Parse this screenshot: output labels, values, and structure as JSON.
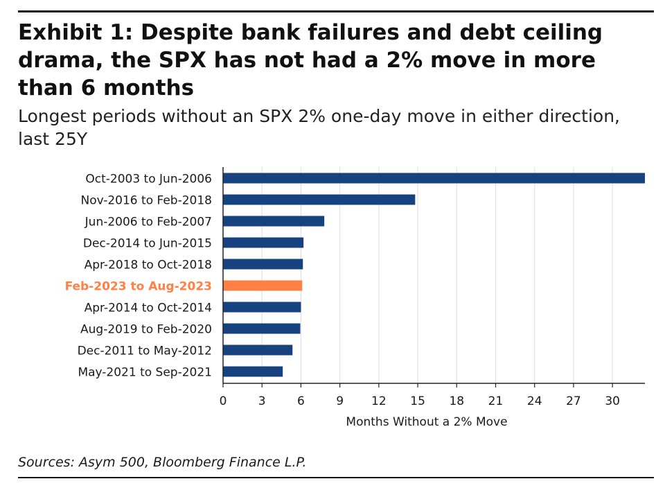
{
  "exhibit": {
    "title": "Exhibit 1: Despite bank failures and debt ceiling drama, the SPX has not had a 2% move in more than 6 months",
    "subtitle": "Longest periods without an SPX 2% one-day move in either direction, last 25Y",
    "source": "Sources: Asym 500, Bloomberg Finance L.P."
  },
  "colors": {
    "bar": "#16427f",
    "highlight": "#ff8045",
    "grid": "#e2e2e2",
    "axis": "#222222",
    "text": "#1a1a1a"
  },
  "chart_data": {
    "type": "bar",
    "orientation": "horizontal",
    "title": "Longest periods without an SPX 2% one-day move in either direction, last 25Y",
    "xlabel": "Months Without a 2% Move",
    "ylabel": "",
    "xlim": [
      0,
      32.5
    ],
    "xticks": [
      0,
      3,
      6,
      9,
      12,
      15,
      18,
      21,
      24,
      27,
      30
    ],
    "grid": true,
    "categories": [
      "Oct-2003 to Jun-2006",
      "Nov-2016 to Feb-2018",
      "Jun-2006 to Feb-2007",
      "Dec-2014 to Jun-2015",
      "Apr-2018 to Oct-2018",
      "Feb-2023 to Aug-2023",
      "Apr-2014 to Oct-2014",
      "Aug-2019 to Feb-2020",
      "Dec-2011 to May-2012",
      "May-2021 to Sep-2021"
    ],
    "values": [
      32.5,
      14.8,
      7.8,
      6.2,
      6.15,
      6.1,
      6.0,
      5.95,
      5.35,
      4.6
    ],
    "highlight": "Feb-2023 to Aug-2023"
  }
}
